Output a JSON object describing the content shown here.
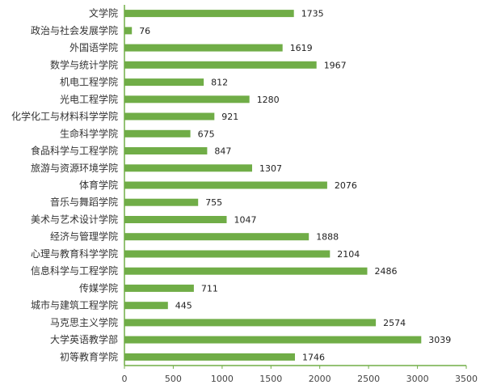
{
  "chart_data": {
    "type": "bar",
    "orientation": "horizontal",
    "categories": [
      "文学院",
      "政治与社会发展学院",
      "外国语学院",
      "数学与统计学院",
      "机电工程学院",
      "光电工程学院",
      "化学化工与材料科学学院",
      "生命科学学院",
      "食品科学与工程学院",
      "旅游与资源环境学院",
      "体育学院",
      "音乐与舞蹈学院",
      "美术与艺术设计学院",
      "经济与管理学院",
      "心理与教育科学学院",
      "信息科学与工程学院",
      "传媒学院",
      "城市与建筑工程学院",
      "马克思主义学院",
      "大学英语教学部",
      "初等教育学院"
    ],
    "values": [
      1735,
      76,
      1619,
      1967,
      812,
      1280,
      921,
      675,
      847,
      1307,
      2076,
      755,
      1047,
      1888,
      2104,
      2486,
      711,
      445,
      2574,
      3039,
      1746
    ],
    "value_labels": [
      "1735",
      "76",
      "1619",
      "1967",
      "812",
      "1280",
      "921",
      "675",
      "847",
      "1307",
      "2076",
      "755",
      "1047",
      "1888",
      "2104",
      "2486",
      "711",
      "445",
      "2574",
      "3039",
      "1746"
    ],
    "xticks": [
      0,
      500,
      1000,
      1500,
      2000,
      2500,
      3000,
      3500
    ],
    "xtick_labels": [
      "0",
      "500",
      "1000",
      "1500",
      "2000",
      "2500",
      "3000",
      "3500"
    ],
    "xlim": [
      0,
      3500
    ],
    "title": "",
    "xlabel": "",
    "ylabel": "",
    "grid": false,
    "bar_color": "#70AD47",
    "axis_color": "#70AD47"
  }
}
